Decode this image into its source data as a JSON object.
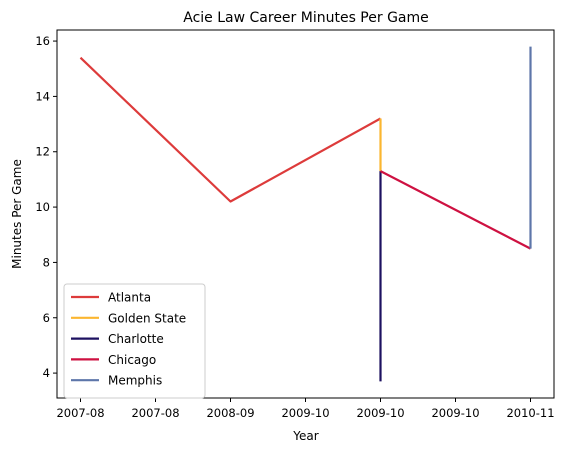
{
  "chart_data": {
    "type": "line",
    "title": "Acie Law Career Minutes Per Game",
    "xlabel": "Year",
    "ylabel": "Minutes Per Game",
    "x_tick_labels": [
      "2007-08",
      "2007-08",
      "2008-09",
      "2009-10",
      "2009-10",
      "2009-10",
      "2010-11"
    ],
    "y_ticks": [
      4,
      6,
      8,
      10,
      12,
      14,
      16
    ],
    "ylim": [
      3.1,
      16.4
    ],
    "grid": false,
    "legend_position": "lower left",
    "series": [
      {
        "name": "Atlanta",
        "color": "#dd3b3b",
        "points": [
          {
            "x": "2007-08",
            "y": 15.4
          },
          {
            "x": "2008-09",
            "y": 10.2
          },
          {
            "x": "2009-10",
            "y": 13.2
          }
        ]
      },
      {
        "name": "Golden State",
        "color": "#fbb630",
        "points": [
          {
            "x": "2009-10",
            "y": 13.2
          },
          {
            "x": "2009-10",
            "y": 11.3
          }
        ]
      },
      {
        "name": "Charlotte",
        "color": "#1d1160",
        "points": [
          {
            "x": "2009-10",
            "y": 11.3
          },
          {
            "x": "2009-10",
            "y": 3.7
          }
        ]
      },
      {
        "name": "Chicago",
        "color": "#ce1141",
        "points": [
          {
            "x": "2009-10",
            "y": 11.3
          },
          {
            "x": "2010-11",
            "y": 8.5
          }
        ]
      },
      {
        "name": "Memphis",
        "color": "#5d76a9",
        "points": [
          {
            "x": "2010-11",
            "y": 8.5
          },
          {
            "x": "2010-11",
            "y": 15.8
          }
        ]
      }
    ]
  }
}
